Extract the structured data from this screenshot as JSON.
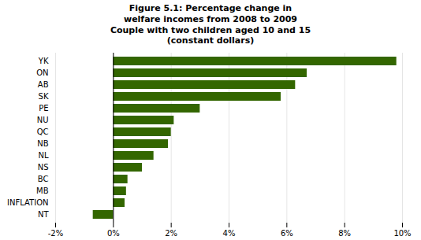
{
  "chart_data": {
    "type": "bar",
    "orientation": "horizontal",
    "title": "Figure 5.1: Percentage change in\nwelfare incomes from 2008 to 2009\nCouple with two children aged 10 and 15\n(constant dollars)",
    "categories": [
      "YK",
      "ON",
      "AB",
      "SK",
      "PE",
      "NU",
      "QC",
      "NB",
      "NL",
      "NS",
      "BC",
      "MB",
      "INFLATION",
      "NT"
    ],
    "values": [
      9.8,
      6.7,
      6.3,
      5.8,
      3.0,
      2.1,
      2.0,
      1.9,
      1.4,
      1.0,
      0.5,
      0.45,
      0.4,
      -0.7
    ],
    "color": "#336600",
    "xlim": [
      -2,
      10
    ],
    "xticks": [
      {
        "value": -2,
        "label": "-2%"
      },
      {
        "value": 0,
        "label": "0%"
      },
      {
        "value": 2,
        "label": "2%"
      },
      {
        "value": 4,
        "label": "4%"
      },
      {
        "value": 6,
        "label": "6%"
      },
      {
        "value": 8,
        "label": "8%"
      },
      {
        "value": 10,
        "label": "10%"
      }
    ],
    "grid": true
  }
}
